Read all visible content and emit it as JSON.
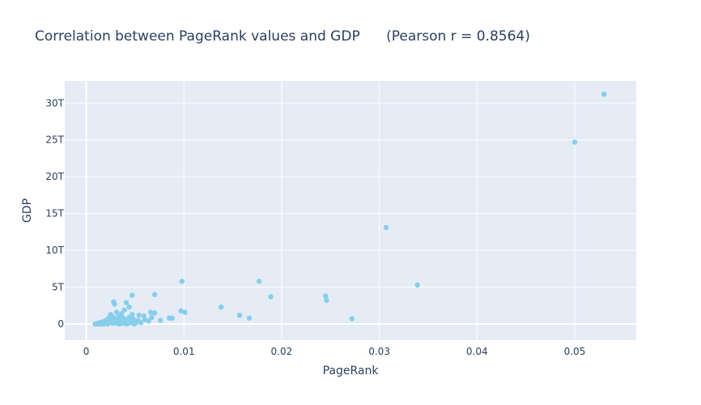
{
  "chart_data": {
    "type": "scatter",
    "title": "Correlation between PageRank values and GDP      (Pearson r = 0.8564)",
    "xlabel": "PageRank",
    "ylabel": "GDP",
    "xlim": [
      -0.0022,
      0.0563
    ],
    "ylim": [
      -2.2,
      33
    ],
    "grid": true,
    "legend": "none",
    "colors": {
      "background": "#e5ecf6",
      "point": "#87ceeb",
      "text": "#2a3f5f",
      "grid": "#ffffff"
    },
    "x_ticks": [
      {
        "value": 0,
        "label": "0"
      },
      {
        "value": 0.01,
        "label": "0.01"
      },
      {
        "value": 0.02,
        "label": "0.02"
      },
      {
        "value": 0.03,
        "label": "0.03"
      },
      {
        "value": 0.04,
        "label": "0.04"
      },
      {
        "value": 0.05,
        "label": "0.05"
      }
    ],
    "y_ticks": [
      {
        "value": 0,
        "label": "0"
      },
      {
        "value": 5,
        "label": "5T"
      },
      {
        "value": 10,
        "label": "10T"
      },
      {
        "value": 15,
        "label": "15T"
      },
      {
        "value": 20,
        "label": "20T"
      },
      {
        "value": 25,
        "label": "25T"
      },
      {
        "value": 30,
        "label": "30T"
      }
    ],
    "points": [
      [
        0.053,
        31.2
      ],
      [
        0.05,
        24.7
      ],
      [
        0.0307,
        13.1
      ],
      [
        0.0339,
        5.3
      ],
      [
        0.0177,
        5.8
      ],
      [
        0.0098,
        5.8
      ],
      [
        0.0189,
        3.7
      ],
      [
        0.0245,
        3.8
      ],
      [
        0.0246,
        3.2
      ],
      [
        0.0138,
        2.3
      ],
      [
        0.0157,
        1.2
      ],
      [
        0.0167,
        0.8
      ],
      [
        0.0272,
        0.7
      ],
      [
        0.007,
        4.0
      ],
      [
        0.0047,
        3.9
      ],
      [
        0.0028,
        3.0
      ],
      [
        0.0029,
        2.7
      ],
      [
        0.0041,
        2.9
      ],
      [
        0.0044,
        2.3
      ],
      [
        0.0039,
        1.9
      ],
      [
        0.0031,
        1.6
      ],
      [
        0.0036,
        1.4
      ],
      [
        0.0054,
        1.2
      ],
      [
        0.0059,
        1.1
      ],
      [
        0.0066,
        1.6
      ],
      [
        0.007,
        1.5
      ],
      [
        0.0097,
        1.8
      ],
      [
        0.0101,
        1.6
      ],
      [
        0.0047,
        1.3
      ],
      [
        0.0034,
        1.1
      ],
      [
        0.0028,
        0.9
      ],
      [
        0.0023,
        0.8
      ],
      [
        0.002,
        0.5
      ],
      [
        0.0017,
        0.3
      ],
      [
        0.0014,
        0.2
      ],
      [
        0.0011,
        0.1
      ],
      [
        0.0009,
        0.0
      ],
      [
        0.0012,
        0.0
      ],
      [
        0.0015,
        0.1
      ],
      [
        0.0018,
        0.0
      ],
      [
        0.0021,
        0.2
      ],
      [
        0.0024,
        0.4
      ],
      [
        0.0026,
        0.6
      ],
      [
        0.0027,
        0.1
      ],
      [
        0.003,
        0.3
      ],
      [
        0.0032,
        0.7
      ],
      [
        0.0033,
        0.2
      ],
      [
        0.0035,
        0.5
      ],
      [
        0.0037,
        0.1
      ],
      [
        0.0038,
        0.8
      ],
      [
        0.004,
        0.3
      ],
      [
        0.0042,
        0.6
      ],
      [
        0.0043,
        0.1
      ],
      [
        0.0045,
        0.4
      ],
      [
        0.0046,
        0.2
      ],
      [
        0.0048,
        0.7
      ],
      [
        0.005,
        0.1
      ],
      [
        0.0052,
        0.3
      ],
      [
        0.0056,
        0.2
      ],
      [
        0.006,
        0.6
      ],
      [
        0.0064,
        0.4
      ],
      [
        0.0067,
        0.9
      ],
      [
        0.0076,
        0.5
      ],
      [
        0.0085,
        0.8
      ],
      [
        0.0088,
        0.8
      ],
      [
        0.0025,
        1.3
      ],
      [
        0.0022,
        0.0
      ],
      [
        0.0019,
        0.1
      ],
      [
        0.0034,
        0.0
      ],
      [
        0.0041,
        0.0
      ],
      [
        0.0049,
        0.0
      ],
      [
        0.0016,
        0.0
      ],
      [
        0.0029,
        0.4
      ],
      [
        0.0036,
        0.9
      ],
      [
        0.0039,
        0.4
      ],
      [
        0.0044,
        0.9
      ],
      [
        0.0053,
        0.5
      ],
      [
        0.0031,
        0.1
      ],
      [
        0.0026,
        0.2
      ],
      [
        0.0013,
        0.0
      ]
    ]
  }
}
